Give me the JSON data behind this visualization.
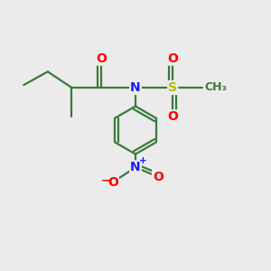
{
  "background_color": "#ebebeb",
  "bond_color": "#3a7a3a",
  "atom_colors": {
    "N": "#1a1aff",
    "O": "#ff0000",
    "S": "#bbbb00",
    "C": "#3a7a3a"
  },
  "figsize": [
    3.0,
    3.0
  ],
  "dpi": 100
}
